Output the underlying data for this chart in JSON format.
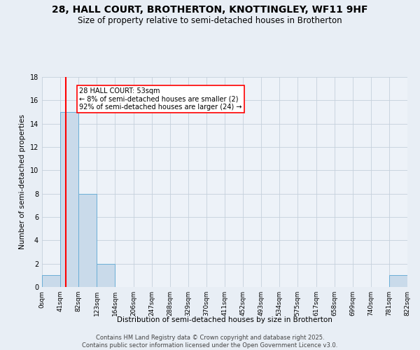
{
  "title": "28, HALL COURT, BROTHERTON, KNOTTINGLEY, WF11 9HF",
  "subtitle": "Size of property relative to semi-detached houses in Brotherton",
  "xlabel": "Distribution of semi-detached houses by size in Brotherton",
  "ylabel": "Number of semi-detached properties",
  "bin_edges": [
    0,
    41,
    82,
    123,
    164,
    206,
    247,
    288,
    329,
    370,
    411,
    452,
    493,
    534,
    575,
    617,
    658,
    699,
    740,
    781,
    822
  ],
  "bin_labels": [
    "0sqm",
    "41sqm",
    "82sqm",
    "123sqm",
    "164sqm",
    "206sqm",
    "247sqm",
    "288sqm",
    "329sqm",
    "370sqm",
    "411sqm",
    "452sqm",
    "493sqm",
    "534sqm",
    "575sqm",
    "617sqm",
    "658sqm",
    "699sqm",
    "740sqm",
    "781sqm",
    "822sqm"
  ],
  "counts": [
    1,
    15,
    8,
    2,
    0,
    0,
    0,
    0,
    0,
    0,
    0,
    0,
    0,
    0,
    0,
    0,
    0,
    0,
    0,
    1
  ],
  "bar_color": "#c9daea",
  "bar_edge_color": "#6baed6",
  "red_line_x": 53,
  "ylim": [
    0,
    18
  ],
  "annotation_text": "28 HALL COURT: 53sqm\n← 8% of semi-detached houses are smaller (2)\n92% of semi-detached houses are larger (24) →",
  "footer_line1": "Contains HM Land Registry data © Crown copyright and database right 2025.",
  "footer_line2": "Contains public sector information licensed under the Open Government Licence v3.0.",
  "background_color": "#e8eef5",
  "plot_background_color": "#edf2f8",
  "grid_color": "#c5d0dc",
  "title_fontsize": 10,
  "subtitle_fontsize": 8.5,
  "label_fontsize": 7.5,
  "tick_fontsize": 6.5,
  "footer_fontsize": 6,
  "annotation_fontsize": 7
}
